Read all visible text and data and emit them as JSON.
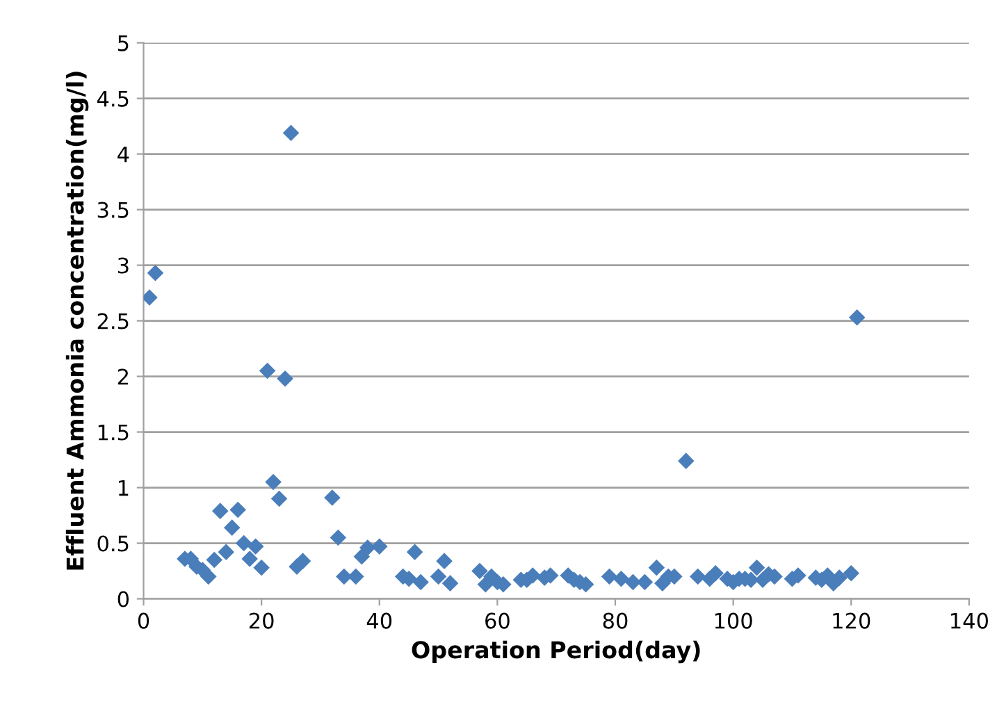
{
  "chart_data": {
    "type": "scatter",
    "xlabel": "Operation Period(day)",
    "ylabel": "Effluent Ammonia concentration(mg/l)",
    "x": [
      1,
      2,
      7,
      8,
      9,
      10,
      11,
      12,
      13,
      14,
      15,
      16,
      17,
      18,
      19,
      20,
      21,
      22,
      23,
      24,
      25,
      26,
      27,
      32,
      33,
      34,
      36,
      37,
      38,
      40,
      44,
      45,
      46,
      47,
      50,
      51,
      52,
      57,
      58,
      59,
      60,
      61,
      64,
      65,
      66,
      68,
      69,
      72,
      73,
      74,
      75,
      79,
      81,
      83,
      85,
      87,
      88,
      89,
      90,
      92,
      94,
      96,
      97,
      99,
      100,
      101,
      102,
      103,
      104,
      105,
      106,
      107,
      110,
      111,
      114,
      115,
      116,
      117,
      118,
      120,
      121
    ],
    "series": [
      {
        "color": "#4a7ebb",
        "values": [
          2.71,
          2.93,
          0.36,
          0.36,
          0.29,
          0.26,
          0.2,
          0.35,
          0.79,
          0.42,
          0.64,
          0.8,
          0.5,
          0.36,
          0.47,
          0.28,
          2.05,
          1.05,
          0.9,
          1.98,
          4.19,
          0.29,
          0.34,
          0.91,
          0.55,
          0.2,
          0.2,
          0.38,
          0.46,
          0.47,
          0.2,
          0.18,
          0.42,
          0.15,
          0.2,
          0.34,
          0.14,
          0.25,
          0.13,
          0.2,
          0.15,
          0.13,
          0.17,
          0.17,
          0.21,
          0.19,
          0.21,
          0.21,
          0.17,
          0.15,
          0.13,
          0.2,
          0.18,
          0.15,
          0.15,
          0.28,
          0.14,
          0.2,
          0.2,
          1.24,
          0.2,
          0.18,
          0.23,
          0.18,
          0.15,
          0.18,
          0.18,
          0.17,
          0.28,
          0.17,
          0.22,
          0.2,
          0.18,
          0.21,
          0.19,
          0.17,
          0.21,
          0.14,
          0.19,
          0.23,
          2.53
        ]
      }
    ],
    "xlim": [
      0,
      140
    ],
    "xticks": [
      0,
      20,
      40,
      60,
      80,
      100,
      120,
      140
    ],
    "ylim": [
      0,
      5
    ],
    "yticks": [
      0,
      0.5,
      1,
      1.5,
      2,
      2.5,
      3,
      3.5,
      4,
      4.5,
      5
    ],
    "grid": "y",
    "marker": "diamond",
    "legend": false
  }
}
